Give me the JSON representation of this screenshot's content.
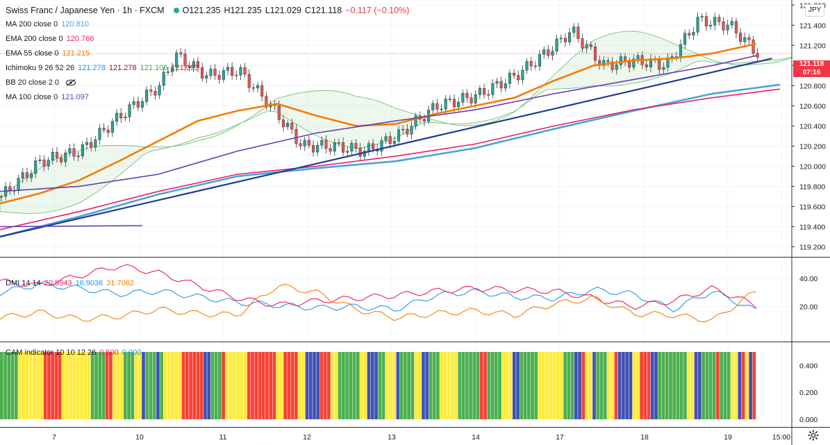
{
  "header": {
    "title": "Swiss Franc / Japanese Yen · 1h · FXCM",
    "status_color": "#26a69a",
    "ohlc": {
      "o_label": "O",
      "o": "121.235",
      "h_label": "H",
      "h": "121.235",
      "l_label": "L",
      "l": "121.029",
      "c_label": "C",
      "c": "121.118",
      "change": "−0.117 (−0.10%)"
    }
  },
  "indicators": [
    {
      "label": "MA 200 close 0",
      "values": [
        "120.810"
      ],
      "colors": [
        "#4aa3df"
      ]
    },
    {
      "label": "EMA 200 close 0",
      "values": [
        "120.766"
      ],
      "colors": [
        "#e91e63"
      ]
    },
    {
      "label": "EMA 55 close 0",
      "values": [
        "121.215"
      ],
      "colors": [
        "#f57c00"
      ]
    },
    {
      "label": "Ichimoku 9 26 52 26",
      "values": [
        "121.278",
        "121.278",
        "121.106",
        "121.093"
      ],
      "colors": [
        "#2196f3",
        "#880e4f",
        "#43a047",
        "#c62828"
      ]
    },
    {
      "label": "BB 20 close 2 0",
      "values": [],
      "colors": [],
      "hidden_icon": "eye-crossed-icon"
    },
    {
      "label": "MA 100 close 0",
      "values": [
        "121.097"
      ],
      "colors": [
        "#673ab7"
      ]
    }
  ],
  "price_scale": {
    "currency_badge": "JPY",
    "last_price": "121.118",
    "countdown": "07:16",
    "last_price_color": "#f23645"
  },
  "dmi_legend": {
    "label": "DMI 14 14",
    "values": [
      "20.8943",
      "16.9036",
      "31.7062"
    ],
    "colors": [
      "#e91e63",
      "#2196f3",
      "#f57c00"
    ]
  },
  "cam_legend": {
    "label": "CAM indicator 10 10 12 26",
    "values": [
      "0.500",
      "0.000"
    ],
    "colors": [
      "#e91e63",
      "#2196f3"
    ]
  },
  "time_axis": {
    "labels": [
      "7",
      "10",
      "11",
      "12",
      "13",
      "14",
      "17",
      "18",
      "19",
      "15:00"
    ]
  },
  "settings_icon": "gear-icon",
  "chart_data": [
    {
      "type": "line",
      "name": "main-price-pane",
      "candlesticks": "CHFJPY 1h OHLC (approximate)",
      "ylim": [
        119.1,
        121.65
      ],
      "yticks": [
        121.6,
        121.4,
        121.2,
        121.0,
        120.8,
        120.6,
        120.4,
        120.2,
        120.0,
        119.8,
        119.6,
        119.4,
        119.2
      ],
      "x_range": [
        0,
        1
      ],
      "series": [
        {
          "name": "EMA 55 close 0",
          "color": "#f57c00",
          "x": [
            0,
            0.05,
            0.1,
            0.15,
            0.2,
            0.25,
            0.3,
            0.35,
            0.4,
            0.45,
            0.5,
            0.55,
            0.6,
            0.65,
            0.7,
            0.75,
            0.8,
            0.85,
            0.9,
            0.955
          ],
          "y": [
            119.63,
            119.73,
            119.86,
            120.05,
            120.25,
            120.45,
            120.55,
            120.62,
            120.5,
            120.4,
            120.42,
            120.52,
            120.6,
            120.68,
            120.85,
            121.0,
            121.05,
            121.07,
            121.12,
            121.215
          ]
        },
        {
          "name": "MA 200 close 0",
          "color": "#4aa3df",
          "x": [
            0,
            0.1,
            0.2,
            0.3,
            0.4,
            0.5,
            0.6,
            0.7,
            0.8,
            0.9,
            0.985
          ],
          "y": [
            119.3,
            119.5,
            119.72,
            119.9,
            119.98,
            120.05,
            120.18,
            120.37,
            120.55,
            120.72,
            120.81
          ]
        },
        {
          "name": "EMA 200 close 0",
          "color": "#e91e63",
          "x": [
            0,
            0.1,
            0.2,
            0.3,
            0.4,
            0.5,
            0.6,
            0.7,
            0.8,
            0.9,
            0.985
          ],
          "y": [
            119.37,
            119.55,
            119.75,
            119.92,
            120.0,
            120.1,
            120.22,
            120.4,
            120.56,
            120.68,
            120.766
          ]
        },
        {
          "name": "MA 100 close 0",
          "color": "#673ab7",
          "x": [
            0,
            0.1,
            0.2,
            0.3,
            0.4,
            0.5,
            0.6,
            0.7,
            0.8,
            0.9,
            0.955
          ],
          "y": [
            119.75,
            119.8,
            119.92,
            120.15,
            120.33,
            120.45,
            120.56,
            120.72,
            120.86,
            121.0,
            121.097
          ]
        },
        {
          "name": "Trendline",
          "color": "#1e3d8f",
          "x": [
            0,
            0.975
          ],
          "y": [
            119.3,
            121.07
          ]
        },
        {
          "name": "Horizontal line",
          "color": "#673ab7",
          "x": [
            0,
            0.18
          ],
          "y": [
            119.4,
            119.41
          ]
        }
      ]
    },
    {
      "type": "line",
      "name": "DMI 14 14",
      "ylim": [
        0,
        50
      ],
      "yticks": [
        40.0,
        20.0
      ],
      "series": [
        {
          "name": "+DI",
          "color": "#2196f3",
          "x": [
            0,
            0.05,
            0.1,
            0.15,
            0.2,
            0.25,
            0.3,
            0.35,
            0.4,
            0.45,
            0.5,
            0.55,
            0.6,
            0.65,
            0.7,
            0.75,
            0.8,
            0.85,
            0.9,
            0.955
          ],
          "y": [
            30,
            36,
            33,
            29,
            31,
            27,
            23,
            21,
            19,
            20,
            18,
            28,
            31,
            27,
            26,
            32,
            29,
            18,
            31,
            17
          ]
        },
        {
          "name": "-DI",
          "color": "#e91e63",
          "x": [
            0,
            0.05,
            0.1,
            0.15,
            0.2,
            0.25,
            0.3,
            0.35,
            0.4,
            0.45,
            0.5,
            0.55,
            0.6,
            0.65,
            0.7,
            0.75,
            0.8,
            0.85,
            0.9,
            0.955
          ],
          "y": [
            38,
            35,
            42,
            49,
            44,
            35,
            26,
            21,
            24,
            26,
            28,
            31,
            33,
            32,
            31,
            26,
            20,
            24,
            33,
            21
          ]
        },
        {
          "name": "ADX",
          "color": "#f57c00",
          "x": [
            0,
            0.05,
            0.1,
            0.15,
            0.2,
            0.25,
            0.3,
            0.35,
            0.4,
            0.45,
            0.5,
            0.55,
            0.6,
            0.65,
            0.7,
            0.75,
            0.8,
            0.85,
            0.9,
            0.955
          ],
          "y": [
            12,
            16,
            11,
            13,
            18,
            15,
            14,
            35,
            30,
            18,
            12,
            15,
            17,
            14,
            22,
            26,
            15,
            14,
            10,
            31
          ]
        }
      ]
    },
    {
      "type": "bar",
      "name": "CAM indicator 10 10 12 26",
      "ylim": [
        0,
        0.5
      ],
      "yticks": [
        0.4,
        0.2,
        0.0
      ],
      "bar_value": 0.5,
      "color_map": {
        "G": "#4caf50",
        "Y": "#ffeb3b",
        "R": "#f44336",
        "B": "#3f51b5"
      },
      "bar_color_runs": [
        [
          "G",
          5
        ],
        [
          "Y",
          7
        ],
        [
          "R",
          5
        ],
        [
          "Y",
          8
        ],
        [
          "G",
          4
        ],
        [
          "R",
          2
        ],
        [
          "Y",
          3
        ],
        [
          "G",
          3
        ],
        [
          "Y",
          2
        ],
        [
          "B",
          1
        ],
        [
          "G",
          3
        ],
        [
          "B",
          1
        ],
        [
          "G",
          1
        ],
        [
          "Y",
          5
        ],
        [
          "R",
          6
        ],
        [
          "B",
          2
        ],
        [
          "G",
          3
        ],
        [
          "R",
          1
        ],
        [
          "Y",
          6
        ],
        [
          "R",
          8
        ],
        [
          "Y",
          2
        ],
        [
          "R",
          4
        ],
        [
          "Y",
          2
        ],
        [
          "B",
          4
        ],
        [
          "R",
          3
        ],
        [
          "Y",
          2
        ],
        [
          "G",
          6
        ],
        [
          "Y",
          2
        ],
        [
          "B",
          3
        ],
        [
          "G",
          2
        ],
        [
          "Y",
          3
        ],
        [
          "B",
          1
        ],
        [
          "G",
          4
        ],
        [
          "Y",
          2
        ],
        [
          "B",
          2
        ],
        [
          "G",
          3
        ],
        [
          "Y",
          5
        ],
        [
          "G",
          6
        ],
        [
          "R",
          2
        ],
        [
          "G",
          4
        ],
        [
          "Y",
          3
        ],
        [
          "B",
          2
        ],
        [
          "G",
          5
        ],
        [
          "Y",
          7
        ],
        [
          "G",
          3
        ],
        [
          "B",
          2
        ],
        [
          "R",
          1
        ],
        [
          "Y",
          2
        ],
        [
          "B",
          1
        ],
        [
          "G",
          3
        ],
        [
          "Y",
          2
        ],
        [
          "R",
          1
        ],
        [
          "B",
          4
        ],
        [
          "Y",
          2
        ],
        [
          "R",
          3
        ],
        [
          "B",
          2
        ],
        [
          "G",
          8
        ],
        [
          "Y",
          2
        ],
        [
          "B",
          2
        ],
        [
          "G",
          4
        ],
        [
          "R",
          1
        ],
        [
          "G",
          3
        ],
        [
          "Y",
          2
        ],
        [
          "B",
          1
        ],
        [
          "R",
          1
        ],
        [
          "Y",
          1
        ],
        [
          "B",
          1
        ],
        [
          "R",
          1
        ]
      ]
    }
  ]
}
